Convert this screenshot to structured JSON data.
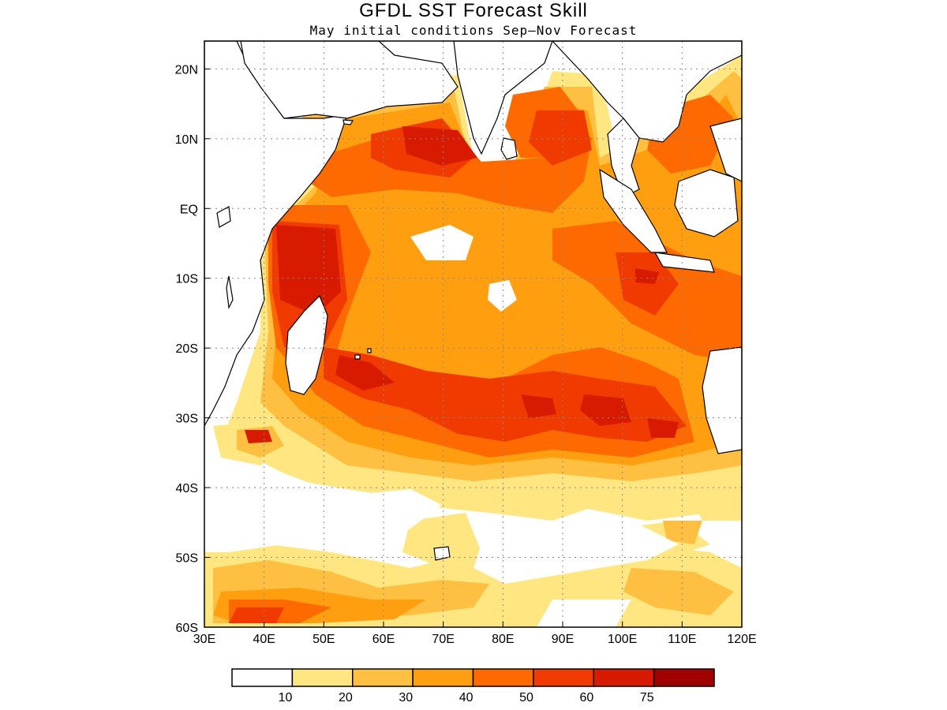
{
  "title": "GFDL SST Forecast Skill",
  "subtitle": "May initial conditions  Sep–Nov Forecast",
  "map": {
    "lon_range": [
      30,
      120
    ],
    "lat_range": [
      -60,
      24
    ],
    "x_ticks": [
      "30E",
      "40E",
      "50E",
      "60E",
      "70E",
      "80E",
      "90E",
      "100E",
      "110E",
      "120E"
    ],
    "y_ticks": [
      "20N",
      "10N",
      "EQ",
      "10S",
      "20S",
      "30S",
      "40S",
      "50S",
      "60S"
    ],
    "grid": "dotted"
  },
  "colorbar": {
    "labels": [
      "10",
      "20",
      "30",
      "40",
      "50",
      "60",
      "75"
    ],
    "colors": [
      "#ffffff",
      "#ffe680",
      "#ffbf40",
      "#ff9f10",
      "#ff6a00",
      "#f03a00",
      "#d81a00",
      "#a00000"
    ]
  }
}
